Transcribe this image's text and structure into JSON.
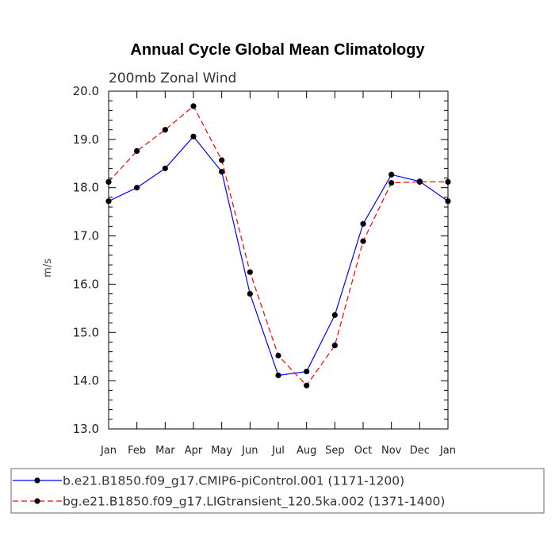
{
  "chart_data": {
    "type": "line",
    "title": "Annual Cycle Global Mean Climatology",
    "subtitle": "200mb Zonal Wind",
    "ylabel": "m/s",
    "xlabel": "",
    "ylim": [
      13.0,
      20.0
    ],
    "yticks": [
      "13.0",
      "14.0",
      "15.0",
      "16.0",
      "17.0",
      "18.0",
      "19.0",
      "20.0"
    ],
    "categories": [
      "Jan",
      "Feb",
      "Mar",
      "Apr",
      "May",
      "Jun",
      "Jul",
      "Aug",
      "Sep",
      "Oct",
      "Nov",
      "Dec",
      "Jan"
    ],
    "legend_position": "bottom",
    "series": [
      {
        "name": "b.e21.B1850.f09_g17.CMIP6-piControl.001 (1171-1200)",
        "color": "#0000ff",
        "line_style": "solid",
        "values": [
          17.72,
          18.0,
          18.4,
          19.06,
          18.33,
          15.8,
          14.11,
          14.19,
          15.36,
          17.25,
          18.27,
          18.13,
          17.72
        ]
      },
      {
        "name": "bg.e21.B1850.f09_g17.LIGtransient_120.5ka.002 (1371-1400)",
        "color": "#ff0000",
        "line_style": "dashed",
        "values": [
          18.12,
          18.76,
          19.2,
          19.69,
          18.57,
          16.25,
          14.52,
          13.9,
          14.73,
          16.89,
          18.1,
          18.12,
          18.12
        ]
      }
    ]
  }
}
